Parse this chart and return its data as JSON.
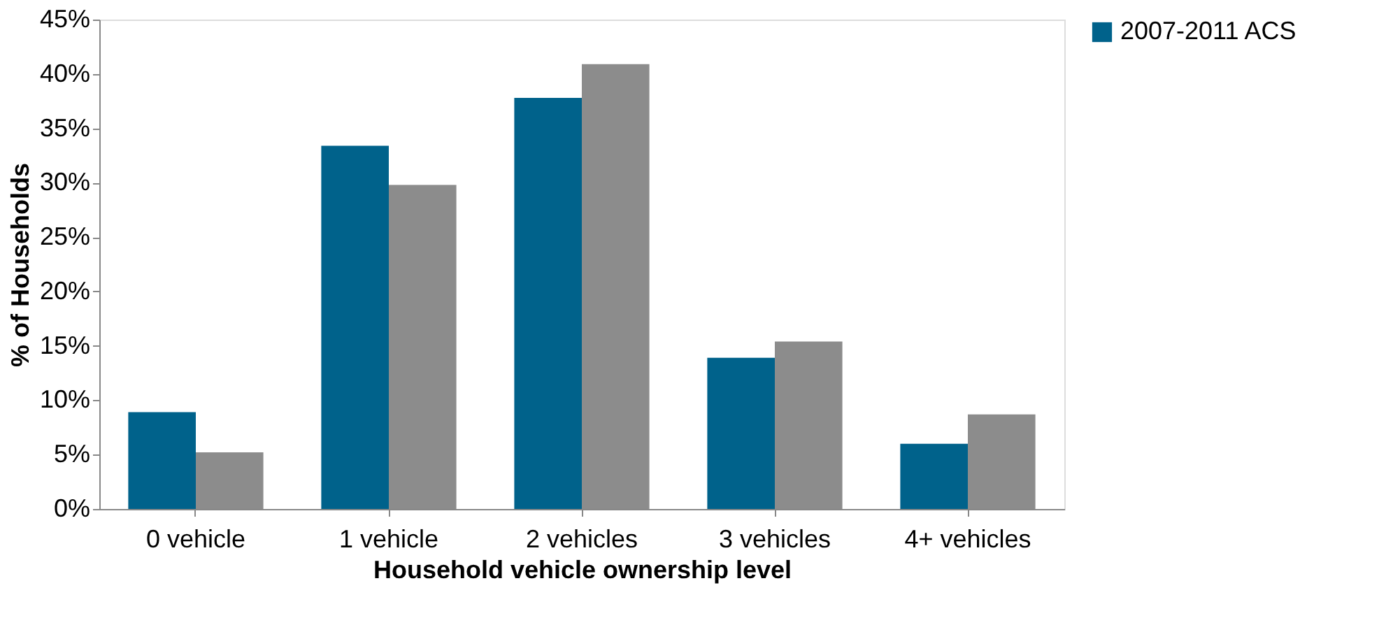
{
  "chart_data": {
    "type": "bar",
    "xlabel": "Household vehicle ownership level",
    "ylabel": "% of Households",
    "categories": [
      "0 vehicle",
      "1 vehicle",
      "2 vehicles",
      "3 vehicles",
      "4+ vehicles"
    ],
    "series": [
      {
        "name": "2007-2011 ACS",
        "color": "#00628b",
        "values": [
          8.9,
          33.4,
          37.8,
          13.9,
          6.0
        ]
      },
      {
        "color": "#8c8c8c",
        "values": [
          5.2,
          29.8,
          40.9,
          15.4,
          8.7
        ]
      }
    ],
    "ylim": [
      0,
      45
    ],
    "yticks": [
      {
        "value": 0,
        "label": "0%"
      },
      {
        "value": 5,
        "label": "5%"
      },
      {
        "value": 10,
        "label": "10%"
      },
      {
        "value": 15,
        "label": "15%"
      },
      {
        "value": 20,
        "label": "20%"
      },
      {
        "value": 25,
        "label": "25%"
      },
      {
        "value": 30,
        "label": "30%"
      },
      {
        "value": 35,
        "label": "35%"
      },
      {
        "value": 40,
        "label": "40%"
      },
      {
        "value": 45,
        "label": "45%"
      }
    ],
    "grid": false,
    "legend": "right"
  }
}
